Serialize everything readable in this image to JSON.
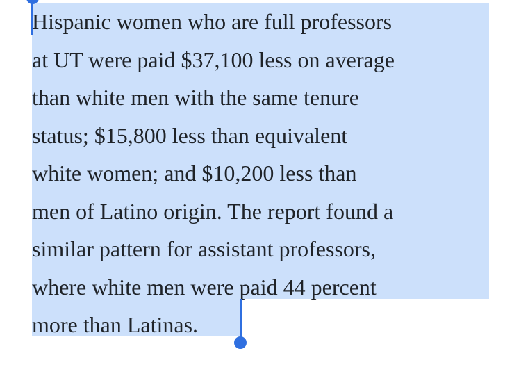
{
  "article": {
    "lines": [
      "Hispanic women who are full professors",
      "at UT were paid $37,100 less on average",
      "than white men with the same tenure",
      "status; $15,800 less than equivalent",
      "white women; and $10,200 less than",
      "men of Latino origin. The report found a",
      "similar pattern for assistant professors,",
      "where white men were paid 44 percent",
      "more than Latinas."
    ]
  },
  "selection": {
    "highlight_color": "#cce0fb",
    "handle_color": "#2f6fe0",
    "text_color": "#1f2328"
  }
}
